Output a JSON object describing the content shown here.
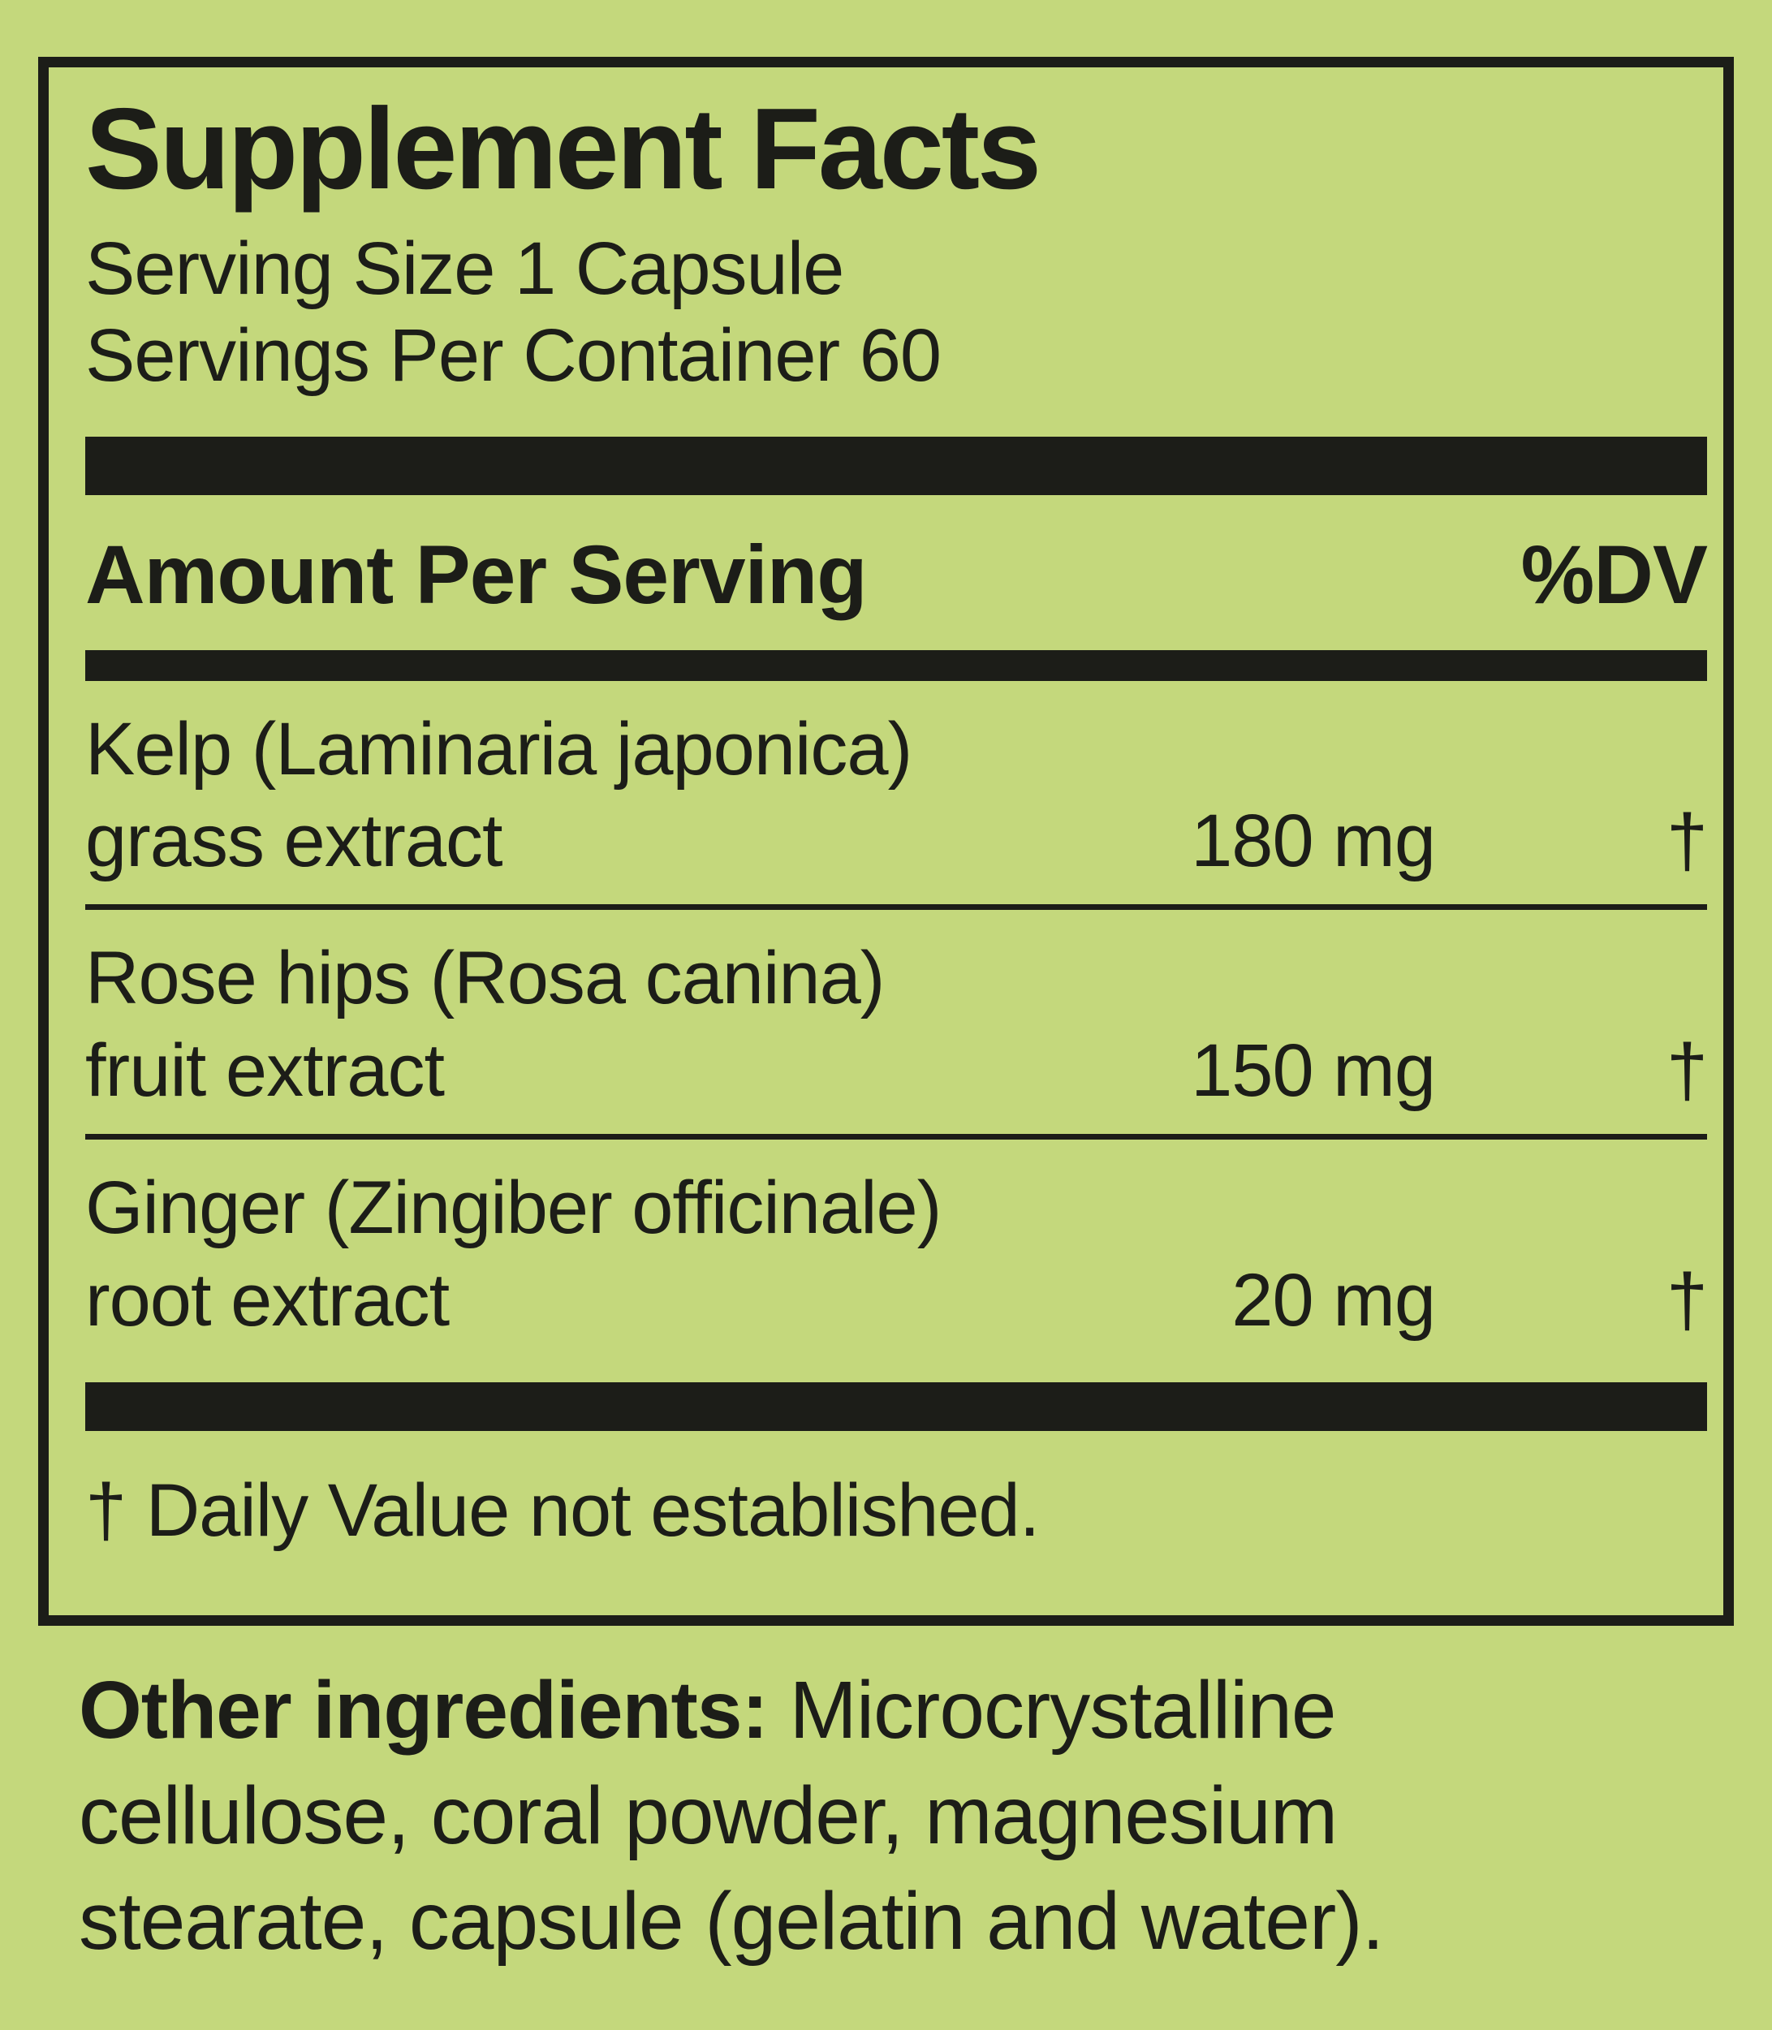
{
  "panel": {
    "title": "Supplement Facts",
    "serving_size": "Serving Size 1 Capsule",
    "servings_per_container": "Servings Per Container 60",
    "columns": {
      "amount_per_serving": "Amount Per Serving",
      "percent_dv": "%DV"
    },
    "rows": [
      {
        "botanical": "Kelp (Laminaria japonica)",
        "part": "grass extract",
        "amount": "180 mg",
        "dv": "†"
      },
      {
        "botanical": "Rose hips (Rosa canina)",
        "part": "fruit extract",
        "amount": "150 mg",
        "dv": "†"
      },
      {
        "botanical": "Ginger (Zingiber officinale)",
        "part": "root extract",
        "amount": "20 mg",
        "dv": "†"
      }
    ],
    "footnote": "† Daily Value not established."
  },
  "other_ingredients": {
    "label": "Other ingredients:",
    "line1_rest": " Microcrystalline",
    "line2": "cellulose, coral powder, magnesium",
    "line3": "stearate, capsule (gelatin and water)."
  },
  "colors": {
    "background": "#c4d87c",
    "ink": "#1c1d18"
  }
}
